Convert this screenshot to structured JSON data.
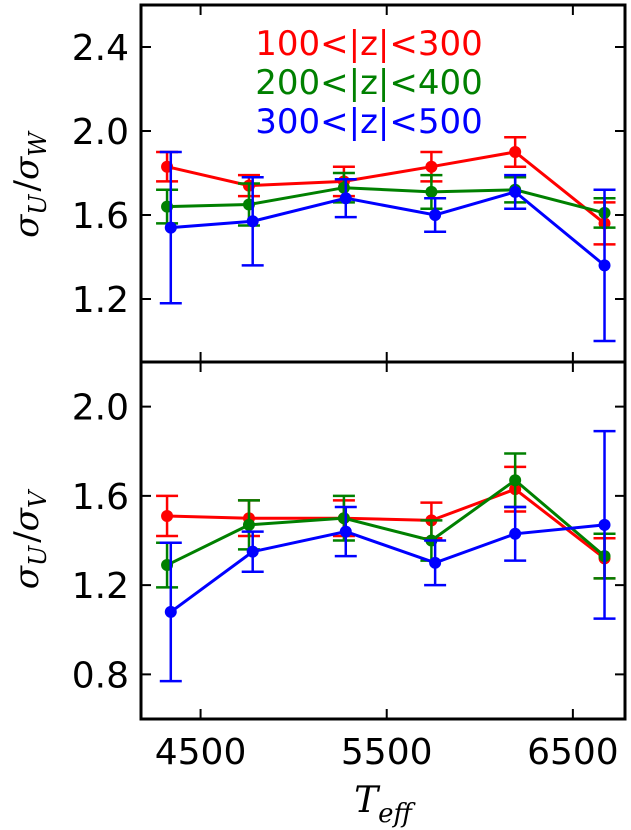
{
  "chart_data": [
    {
      "type": "line",
      "panel": "top",
      "ylabel": "σ_U / σ_W",
      "ylabel_parts": {
        "sigma": "σ",
        "num_sub": "U",
        "slash": "/",
        "den_sub": "W"
      },
      "xlabel": "",
      "xlim": [
        4180,
        6780
      ],
      "ylim": [
        0.9,
        2.6
      ],
      "yticks": [
        1.2,
        1.6,
        2.0,
        2.4
      ],
      "ytick_labels": [
        "1.2",
        "1.6",
        "2.0",
        "2.4"
      ],
      "xticks": [
        4500,
        5500,
        6500
      ],
      "legend_position": "top",
      "series": [
        {
          "name": "100<|z|<300",
          "color": "#ff0000",
          "x": [
            4320,
            4760,
            5270,
            5740,
            6190,
            6670
          ],
          "y": [
            1.83,
            1.74,
            1.76,
            1.83,
            1.9,
            1.56
          ],
          "err": [
            0.07,
            0.05,
            0.07,
            0.07,
            0.07,
            0.1
          ]
        },
        {
          "name": "200<|z|<400",
          "color": "#008000",
          "x": [
            4320,
            4760,
            5270,
            5740,
            6190,
            6670
          ],
          "y": [
            1.64,
            1.65,
            1.73,
            1.71,
            1.72,
            1.61
          ],
          "err": [
            0.08,
            0.1,
            0.07,
            0.08,
            0.06,
            0.07
          ]
        },
        {
          "name": "300<|z|<500",
          "color": "#0000ff",
          "x": [
            4340,
            4780,
            5280,
            5760,
            6190,
            6670
          ],
          "y": [
            1.54,
            1.57,
            1.68,
            1.6,
            1.71,
            1.36
          ],
          "err": [
            0.36,
            0.21,
            0.09,
            0.08,
            0.08,
            0.36
          ]
        }
      ]
    },
    {
      "type": "line",
      "panel": "bottom",
      "ylabel": "σ_U / σ_V",
      "ylabel_parts": {
        "sigma": "σ",
        "num_sub": "U",
        "slash": "/",
        "den_sub": "V"
      },
      "xlabel": "T_eff",
      "xlabel_parts": {
        "main": "T",
        "sub": "eff"
      },
      "xlim": [
        4180,
        6780
      ],
      "ylim": [
        0.6,
        2.2
      ],
      "yticks": [
        0.8,
        1.2,
        1.6,
        2.0
      ],
      "ytick_labels": [
        "0.8",
        "1.2",
        "1.6",
        "2.0"
      ],
      "xticks": [
        4500,
        5500,
        6500
      ],
      "xtick_labels": [
        "4500",
        "5500",
        "6500"
      ],
      "series": [
        {
          "name": "100<|z|<300",
          "color": "#ff0000",
          "x": [
            4320,
            4760,
            5270,
            5740,
            6190,
            6670
          ],
          "y": [
            1.51,
            1.5,
            1.5,
            1.49,
            1.63,
            1.32
          ],
          "err": [
            0.09,
            0.08,
            0.08,
            0.08,
            0.1,
            0.09
          ]
        },
        {
          "name": "200<|z|<400",
          "color": "#008000",
          "x": [
            4320,
            4760,
            5270,
            5740,
            6190,
            6670
          ],
          "y": [
            1.29,
            1.47,
            1.5,
            1.4,
            1.67,
            1.33
          ],
          "err": [
            0.1,
            0.11,
            0.1,
            0.09,
            0.12,
            0.1
          ]
        },
        {
          "name": "300<|z|<500",
          "color": "#0000ff",
          "x": [
            4340,
            4780,
            5280,
            5760,
            6190,
            6670
          ],
          "y": [
            1.08,
            1.35,
            1.44,
            1.3,
            1.43,
            1.47
          ],
          "err": [
            0.31,
            0.09,
            0.11,
            0.1,
            0.12,
            0.42
          ]
        }
      ]
    }
  ]
}
